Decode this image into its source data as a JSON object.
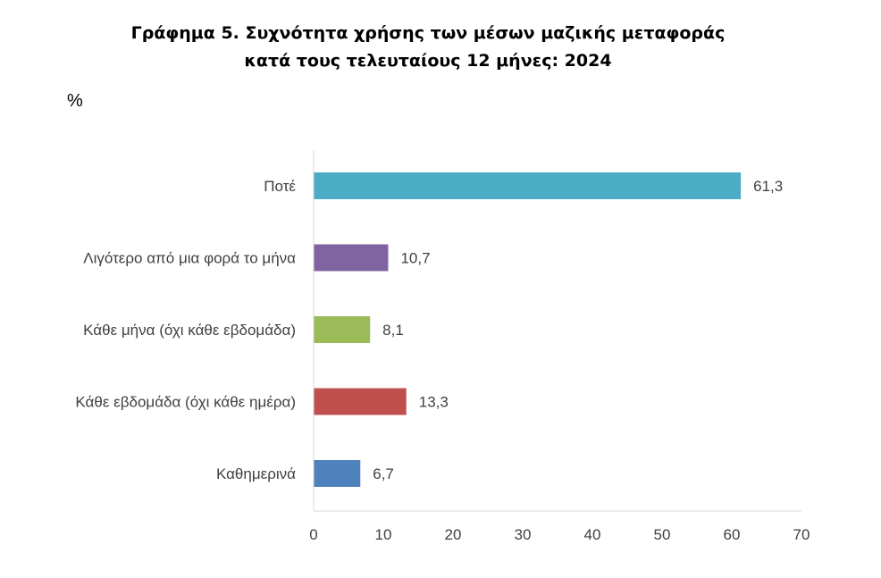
{
  "chart_data": {
    "type": "bar",
    "orientation": "horizontal",
    "title_line1": "Γράφημα 5. Συχνότητα χρήσης των μέσων μαζικής μεταφοράς",
    "title_line2": "κατά τους τελευταίους 12 μήνες: 2024",
    "unit": "%",
    "categories": [
      "Ποτέ",
      "Λιγότερο από μια φορά το μήνα",
      "Κάθε μήνα (όχι κάθε εβδομάδα)",
      "Κάθε εβδομάδα (όχι κάθε ημέρα)",
      "Καθημερινά"
    ],
    "values": [
      61.3,
      10.7,
      8.1,
      13.3,
      6.7
    ],
    "value_labels": [
      "61,3",
      "10,7",
      "8,1",
      "13,3",
      "6,7"
    ],
    "colors": [
      "#4bacc6",
      "#8064a2",
      "#9bbb59",
      "#c0504d",
      "#4f81bd"
    ],
    "xlim": [
      0,
      70
    ],
    "xticks": [
      0,
      10,
      20,
      30,
      40,
      50,
      60,
      70
    ],
    "grid": false,
    "legend": "none"
  }
}
